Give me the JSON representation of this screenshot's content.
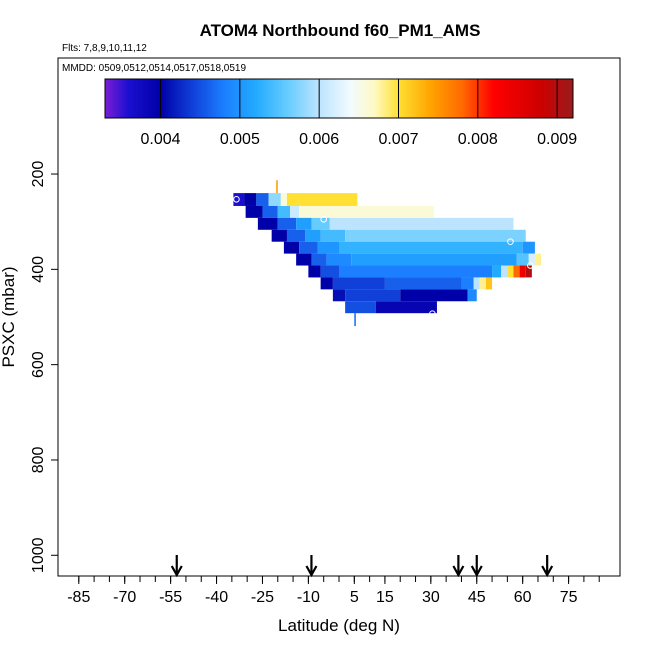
{
  "chart_data": {
    "type": "heatmap",
    "title": "ATOM4 Northbound f60_PM1_AMS",
    "flights_label": "Flts: 7,8,9,10,11,12",
    "dates_label": "MMDD: 0509,0512,0514,0517,0518,0519",
    "xlabel": "Latitude (deg N)",
    "ylabel": "PSXC (mbar)",
    "xlim": [
      -85,
      85
    ],
    "ylim": [
      1000,
      0
    ],
    "x_ticks": [
      -85,
      -70,
      -55,
      -40,
      -25,
      -10,
      5,
      15,
      30,
      45,
      60,
      75
    ],
    "x_tick_labels": [
      "-85",
      "-70",
      "-55",
      "-40",
      "-25",
      "-10",
      "5",
      "15",
      "30",
      "45",
      "60",
      "75"
    ],
    "x_minor_step": 5,
    "y_ticks": [
      200,
      400,
      600,
      800,
      1000
    ],
    "y_tick_labels": [
      "200",
      "400",
      "600",
      "800",
      "1000"
    ],
    "colorbar": {
      "min": 0.0033,
      "max": 0.0092,
      "ticks": [
        0.004,
        0.005,
        0.006,
        0.007,
        0.008,
        0.009
      ],
      "tick_labels": [
        "0.004",
        "0.005",
        "0.006",
        "0.007",
        "0.008",
        "0.009"
      ],
      "stops": [
        [
          0.0033,
          "#7a1ed6"
        ],
        [
          0.0036,
          "#1a0fcf"
        ],
        [
          0.004,
          "#0000a8"
        ],
        [
          0.0044,
          "#1040d8"
        ],
        [
          0.0048,
          "#1b7fff"
        ],
        [
          0.0052,
          "#22aaff"
        ],
        [
          0.0056,
          "#66ccff"
        ],
        [
          0.006,
          "#bde4ff"
        ],
        [
          0.0064,
          "#f2fbff"
        ],
        [
          0.0067,
          "#fff9c2"
        ],
        [
          0.007,
          "#ffe033"
        ],
        [
          0.0074,
          "#ffa500"
        ],
        [
          0.0078,
          "#ff6a00"
        ],
        [
          0.0082,
          "#ff0000"
        ],
        [
          0.0088,
          "#cc0000"
        ],
        [
          0.0092,
          "#9a1c1c"
        ]
      ]
    },
    "rows": [
      {
        "p_top": 213,
        "p_bot": 240,
        "lat_start": -20.5,
        "lat_end": -20.0,
        "segments": [
          {
            "to": -20.0,
            "v": 0.0075
          }
        ]
      },
      {
        "p_top": 240,
        "p_bot": 267,
        "lat_start": -34.5,
        "lat_end": 6.0,
        "segments": [
          {
            "to": -31,
            "v": 0.0036
          },
          {
            "to": -27,
            "v": 0.004
          },
          {
            "to": -23,
            "v": 0.0046
          },
          {
            "to": -19,
            "v": 0.0058
          },
          {
            "to": -17,
            "v": 0.0066
          },
          {
            "to": 6,
            "v": 0.007
          }
        ]
      },
      {
        "p_top": 267,
        "p_bot": 292,
        "lat_start": -30.5,
        "lat_end": 31.0,
        "segments": [
          {
            "to": -25,
            "v": 0.004
          },
          {
            "to": -20,
            "v": 0.0046
          },
          {
            "to": -16,
            "v": 0.0054
          },
          {
            "to": -13,
            "v": 0.0061
          },
          {
            "to": 31,
            "v": 0.0066
          }
        ]
      },
      {
        "p_top": 292,
        "p_bot": 317,
        "lat_start": -26.5,
        "lat_end": 57.0,
        "segments": [
          {
            "to": -20,
            "v": 0.004
          },
          {
            "to": -14,
            "v": 0.0046
          },
          {
            "to": -9,
            "v": 0.0051
          },
          {
            "to": -3,
            "v": 0.0056
          },
          {
            "to": 57,
            "v": 0.006
          }
        ]
      },
      {
        "p_top": 317,
        "p_bot": 342,
        "lat_start": -22.0,
        "lat_end": 61.0,
        "segments": [
          {
            "to": -17,
            "v": 0.004
          },
          {
            "to": -11,
            "v": 0.0046
          },
          {
            "to": -6,
            "v": 0.0051
          },
          {
            "to": 2,
            "v": 0.0054
          },
          {
            "to": 61,
            "v": 0.0057
          }
        ]
      },
      {
        "p_top": 342,
        "p_bot": 367,
        "lat_start": -18.0,
        "lat_end": 64.0,
        "segments": [
          {
            "to": -13,
            "v": 0.004
          },
          {
            "to": -7,
            "v": 0.0046
          },
          {
            "to": 0,
            "v": 0.005
          },
          {
            "to": 60,
            "v": 0.0053
          },
          {
            "to": 64,
            "v": 0.005
          }
        ]
      },
      {
        "p_top": 367,
        "p_bot": 392,
        "lat_start": -14.0,
        "lat_end": 66.0,
        "segments": [
          {
            "to": -9,
            "v": 0.004
          },
          {
            "to": -4,
            "v": 0.0046
          },
          {
            "to": 4,
            "v": 0.0049
          },
          {
            "to": 58,
            "v": 0.0051
          },
          {
            "to": 62,
            "v": 0.0055
          },
          {
            "to": 64,
            "v": 0.0062
          },
          {
            "to": 66,
            "v": 0.0068
          }
        ]
      },
      {
        "p_top": 392,
        "p_bot": 417,
        "lat_start": -10.0,
        "lat_end": 63.0,
        "segments": [
          {
            "to": -6,
            "v": 0.004
          },
          {
            "to": 0,
            "v": 0.0045
          },
          {
            "to": 50,
            "v": 0.0048
          },
          {
            "to": 53,
            "v": 0.0052
          },
          {
            "to": 55,
            "v": 0.006
          },
          {
            "to": 57,
            "v": 0.007
          },
          {
            "to": 59,
            "v": 0.0078
          },
          {
            "to": 61,
            "v": 0.0084
          },
          {
            "to": 63,
            "v": 0.009
          }
        ]
      },
      {
        "p_top": 417,
        "p_bot": 442,
        "lat_start": -6.0,
        "lat_end": 50.0,
        "segments": [
          {
            "to": -2,
            "v": 0.004
          },
          {
            "to": 15,
            "v": 0.0044
          },
          {
            "to": 40,
            "v": 0.0046
          },
          {
            "to": 44,
            "v": 0.0048
          },
          {
            "to": 46,
            "v": 0.006
          },
          {
            "to": 48,
            "v": 0.0068
          },
          {
            "to": 50,
            "v": 0.0072
          }
        ]
      },
      {
        "p_top": 442,
        "p_bot": 467,
        "lat_start": -2.0,
        "lat_end": 45.0,
        "segments": [
          {
            "to": 2,
            "v": 0.0041
          },
          {
            "to": 20,
            "v": 0.0044
          },
          {
            "to": 42,
            "v": 0.004
          },
          {
            "to": 45,
            "v": 0.0049
          }
        ]
      },
      {
        "p_top": 467,
        "p_bot": 492,
        "lat_start": 2.0,
        "lat_end": 32.0,
        "segments": [
          {
            "to": 12,
            "v": 0.0045
          },
          {
            "to": 32,
            "v": 0.0039
          }
        ]
      },
      {
        "p_top": 492,
        "p_bot": 519,
        "lat_start": 5.0,
        "lat_end": 5.5,
        "segments": [
          {
            "to": 5.5,
            "v": 0.0047
          }
        ]
      }
    ],
    "markers": [
      {
        "lat": -33.5,
        "p": 253
      },
      {
        "lat": -5.0,
        "p": 295
      },
      {
        "lat": 56.0,
        "p": 342
      },
      {
        "lat": 62.5,
        "p": 392
      },
      {
        "lat": 62.0,
        "p": 467
      },
      {
        "lat": 30.5,
        "p": 493
      }
    ],
    "arrows_lat": [
      -53,
      -9,
      39,
      45,
      68
    ]
  }
}
